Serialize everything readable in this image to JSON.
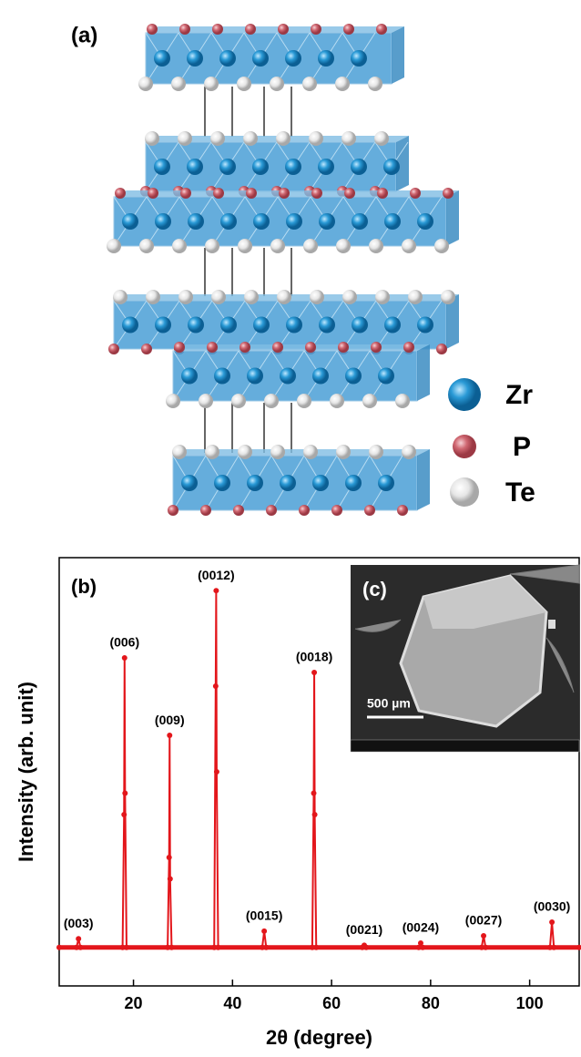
{
  "panel_a": {
    "label": "(a)",
    "legend": [
      "Zr",
      "P",
      "Te"
    ]
  },
  "panel_c": {
    "label": "(c)",
    "scale_bar": "500 µm"
  },
  "chart_data": {
    "type": "line",
    "panel_label": "(b)",
    "xlabel": "2θ (degree)",
    "ylabel": "Intensity (arb. unit)",
    "x": [
      5,
      8.5,
      8.9,
      9.3,
      17.8,
      18.1,
      18.2,
      18.3,
      18.6,
      26.9,
      27.2,
      27.3,
      27.4,
      27.7,
      36.3,
      36.6,
      36.7,
      36.8,
      37.1,
      46.0,
      46.4,
      46.8,
      56.1,
      56.4,
      56.5,
      56.6,
      56.9,
      66.2,
      66.6,
      67.0,
      77.6,
      78.0,
      78.4,
      90.3,
      90.7,
      91.1,
      104.1,
      104.5,
      104.9,
      110
    ],
    "series": [
      {
        "color": "#e3161b",
        "values": [
          9,
          9,
          11,
          9,
          9,
          40,
          76.6,
          45,
          9,
          9,
          30,
          58.5,
          25,
          9,
          9,
          70,
          92.3,
          50,
          9,
          9,
          12.8,
          9,
          9,
          45,
          73.2,
          40,
          9,
          9,
          9.5,
          9,
          9,
          10,
          9,
          9,
          11.7,
          9,
          9,
          14.9,
          9,
          9
        ]
      }
    ],
    "xlim": [
      5,
      110
    ],
    "ylim": [
      0,
      100
    ],
    "xticks": [
      20,
      40,
      60,
      80,
      100
    ],
    "annotations": [
      {
        "text": "(003)",
        "x": 8.9
      },
      {
        "text": "(006)",
        "x": 18.2
      },
      {
        "text": "(009)",
        "x": 27.3
      },
      {
        "text": "(0012)",
        "x": 36.7
      },
      {
        "text": "(0015)",
        "x": 46.4
      },
      {
        "text": "(0018)",
        "x": 56.5
      },
      {
        "text": "(0021)",
        "x": 66.6
      },
      {
        "text": "(0024)",
        "x": 78.0
      },
      {
        "text": "(0027)",
        "x": 90.7
      },
      {
        "text": "(0030)",
        "x": 104.5
      }
    ]
  }
}
